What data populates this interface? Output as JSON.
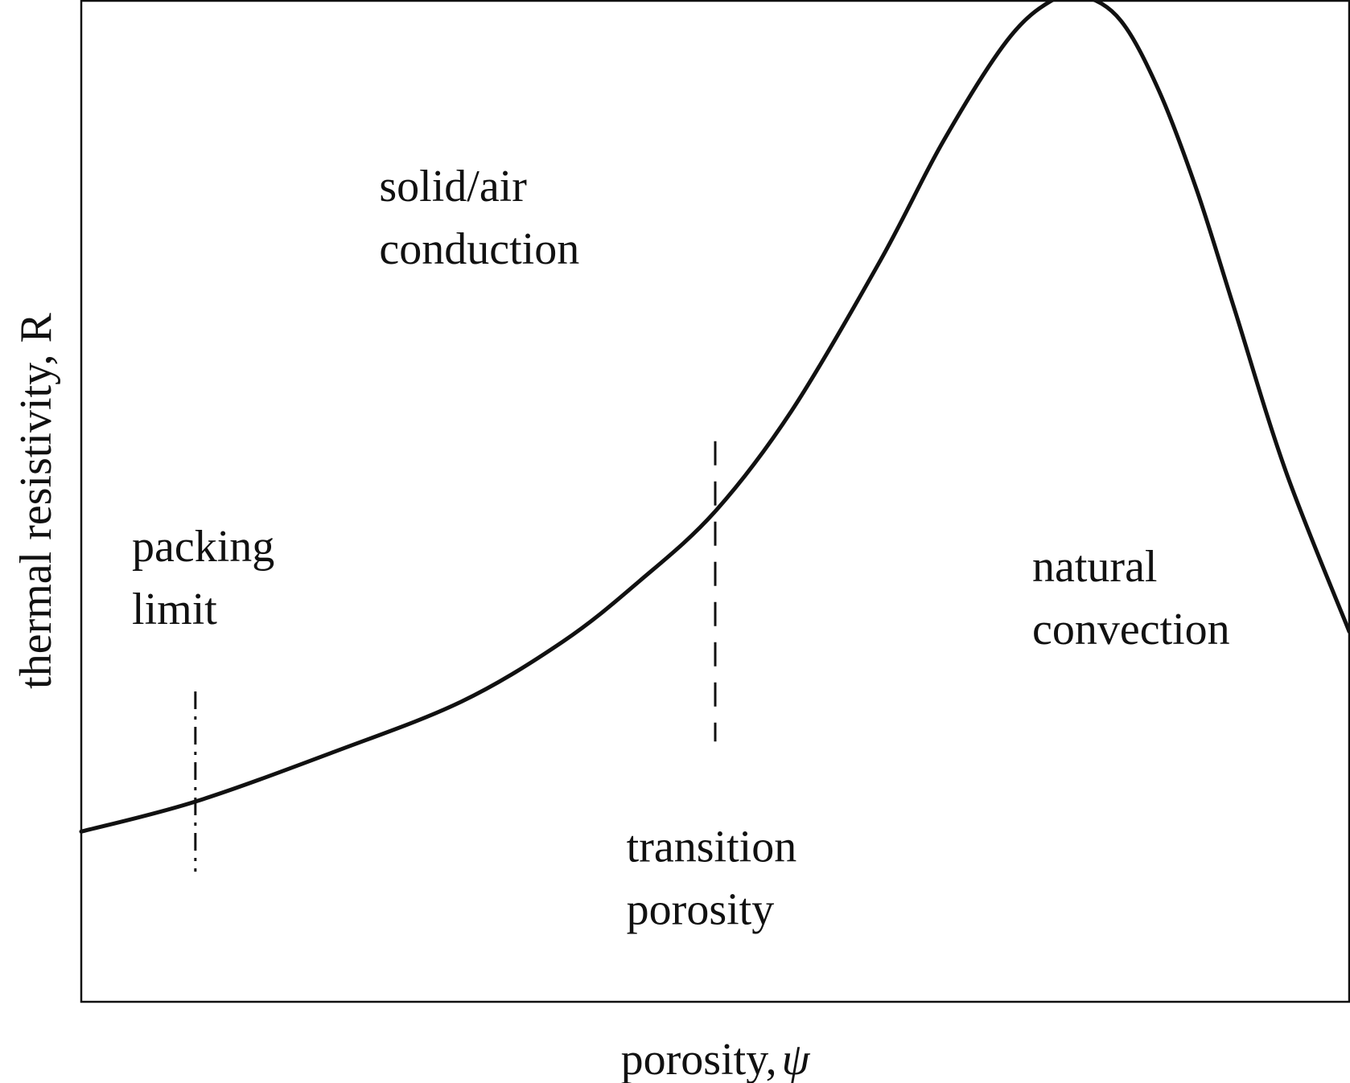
{
  "chart_data": {
    "type": "line",
    "title": "",
    "xlabel": "porosity,",
    "xlabel_symbol": "ψ",
    "ylabel": "thermal resistivity, R",
    "xlim": [
      0,
      1
    ],
    "ylim": [
      0,
      1
    ],
    "x_ticks": [],
    "y_ticks": [],
    "grid": false,
    "legend": "none",
    "line_color": "#111111",
    "series": [
      {
        "x": [
          0.0,
          0.09,
          0.2,
          0.3,
          0.38,
          0.44,
          0.5,
          0.56,
          0.63,
          0.68,
          0.73,
          0.765,
          0.79,
          0.82,
          0.85,
          0.88,
          0.91,
          0.95,
          1.0
        ],
        "y": [
          0.17,
          0.2,
          0.25,
          0.3,
          0.36,
          0.42,
          0.49,
          0.59,
          0.74,
          0.86,
          0.96,
          1.0,
          1.005,
          0.98,
          0.91,
          0.81,
          0.69,
          0.53,
          0.37
        ]
      }
    ],
    "markers": [
      {
        "name": "packing-limit",
        "style": "dash-dot",
        "x": 0.09,
        "y_from": 0.13,
        "y_to": 0.31
      },
      {
        "name": "transition-porosity",
        "style": "dashed",
        "x": 0.5,
        "y_from": 0.26,
        "y_to": 0.56
      }
    ],
    "annotations": [
      {
        "name": "solid-air-conduction",
        "lines": [
          "solid/air",
          "conduction"
        ],
        "x": 0.235,
        "y": 0.8
      },
      {
        "name": "packing-limit",
        "lines": [
          "packing",
          "limit"
        ],
        "x": 0.04,
        "y": 0.44
      },
      {
        "name": "transition-porosity",
        "lines": [
          "transition",
          "porosity"
        ],
        "x": 0.43,
        "y": 0.14
      },
      {
        "name": "natural-convection",
        "lines": [
          "natural",
          "convection"
        ],
        "x": 0.75,
        "y": 0.42
      }
    ]
  }
}
